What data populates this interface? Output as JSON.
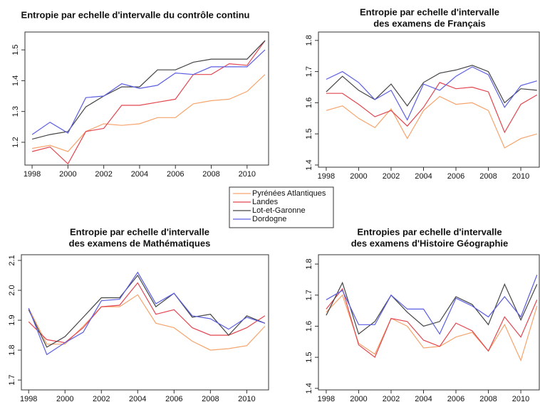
{
  "legend": {
    "series": [
      {
        "name": "Pyrénées Atlantiques",
        "color": "#f6a46c"
      },
      {
        "name": "Landes",
        "color": "#e2464f"
      },
      {
        "name": "Lot-et-Garonne",
        "color": "#444444"
      },
      {
        "name": "Dordogne",
        "color": "#5b5ee0"
      }
    ]
  },
  "chart_data": [
    {
      "type": "line",
      "title": [
        "Entropie par echelle d'intervalle du contrôle continu"
      ],
      "x": [
        1998,
        1999,
        2000,
        2001,
        2002,
        2003,
        2004,
        2005,
        2006,
        2007,
        2008,
        2009,
        2010,
        2011
      ],
      "xlim": [
        1997.6,
        2011.2
      ],
      "xticks": [
        1998,
        2000,
        2002,
        2004,
        2006,
        2008,
        2010
      ],
      "ylim": [
        1.126,
        1.558
      ],
      "yticks": [
        1.2,
        1.3,
        1.4,
        1.5
      ],
      "series": [
        {
          "values": [
            1.18,
            1.19,
            1.17,
            1.235,
            1.26,
            1.255,
            1.26,
            1.28,
            1.28,
            1.325,
            1.335,
            1.34,
            1.365,
            1.42
          ]
        },
        {
          "values": [
            1.17,
            1.185,
            1.13,
            1.235,
            1.245,
            1.32,
            1.32,
            1.33,
            1.34,
            1.42,
            1.42,
            1.455,
            1.45,
            1.53
          ]
        },
        {
          "values": [
            1.21,
            1.225,
            1.235,
            1.315,
            1.35,
            1.38,
            1.38,
            1.435,
            1.435,
            1.46,
            1.47,
            1.47,
            1.47,
            1.53
          ]
        },
        {
          "values": [
            1.225,
            1.265,
            1.23,
            1.345,
            1.35,
            1.39,
            1.375,
            1.385,
            1.425,
            1.42,
            1.445,
            1.445,
            1.445,
            1.5
          ]
        }
      ]
    },
    {
      "type": "line",
      "title": [
        "Entropie par echelle d'intervalle",
        "des examens de Français"
      ],
      "x": [
        1998,
        1999,
        2000,
        2001,
        2002,
        2003,
        2004,
        2005,
        2006,
        2007,
        2008,
        2009,
        2010,
        2011
      ],
      "xlim": [
        1997.52,
        2011.14
      ],
      "xticks": [
        1998,
        2000,
        2002,
        2004,
        2006,
        2008,
        2010
      ],
      "ylim": [
        1.393,
        1.827
      ],
      "yticks": [
        1.4,
        1.5,
        1.6,
        1.7,
        1.8
      ],
      "series": [
        {
          "values": [
            1.575,
            1.59,
            1.55,
            1.52,
            1.58,
            1.485,
            1.575,
            1.62,
            1.595,
            1.6,
            1.575,
            1.455,
            1.485,
            1.5
          ]
        },
        {
          "values": [
            1.63,
            1.63,
            1.595,
            1.555,
            1.575,
            1.525,
            1.585,
            1.665,
            1.645,
            1.65,
            1.635,
            1.505,
            1.595,
            1.625
          ]
        },
        {
          "values": [
            1.635,
            1.685,
            1.64,
            1.61,
            1.66,
            1.59,
            1.665,
            1.695,
            1.705,
            1.72,
            1.7,
            1.6,
            1.645,
            1.64
          ]
        },
        {
          "values": [
            1.675,
            1.7,
            1.665,
            1.61,
            1.64,
            1.545,
            1.66,
            1.64,
            1.685,
            1.715,
            1.69,
            1.585,
            1.655,
            1.67
          ]
        }
      ]
    },
    {
      "type": "line",
      "title": [
        "Entropie par echelle d'intervalle",
        "des examens de Mathématiques"
      ],
      "x": [
        1998,
        1999,
        2000,
        2001,
        2002,
        2003,
        2004,
        2005,
        2006,
        2007,
        2008,
        2009,
        2010,
        2011
      ],
      "xlim": [
        1997.6,
        2011.2
      ],
      "xticks": [
        1998,
        2000,
        2002,
        2004,
        2006,
        2008,
        2010
      ],
      "ylim": [
        1.667,
        2.119
      ],
      "yticks": [
        1.7,
        1.8,
        1.9,
        {
          "value": 2,
          "label": "2.0"
        },
        2.1
      ],
      "series": [
        {
          "values": [
            1.94,
            1.82,
            1.82,
            1.88,
            1.945,
            1.945,
            1.985,
            1.89,
            1.875,
            1.83,
            1.8,
            1.805,
            1.815,
            1.88
          ]
        },
        {
          "values": [
            1.895,
            1.835,
            1.825,
            1.875,
            1.945,
            1.95,
            2.025,
            1.92,
            1.935,
            1.875,
            1.85,
            1.85,
            1.875,
            1.915
          ]
        },
        {
          "values": [
            1.935,
            1.81,
            1.845,
            1.91,
            1.975,
            1.975,
            2.05,
            1.945,
            1.99,
            1.91,
            1.92,
            1.85,
            1.915,
            1.89
          ]
        },
        {
          "values": [
            1.94,
            1.785,
            1.825,
            1.86,
            1.965,
            1.97,
            2.06,
            1.955,
            1.99,
            1.915,
            1.905,
            1.87,
            1.91,
            1.89
          ]
        }
      ]
    },
    {
      "type": "line",
      "title": [
        "Entropies par echelle d'intervalle",
        "des examens d'Histoire Géographie"
      ],
      "x": [
        1998,
        1999,
        2000,
        2001,
        2002,
        2003,
        2004,
        2005,
        2006,
        2007,
        2008,
        2009,
        2010,
        2011
      ],
      "xlim": [
        1997.52,
        2011.14
      ],
      "xticks": [
        1998,
        2000,
        2002,
        2004,
        2006,
        2008,
        2010
      ],
      "ylim": [
        1.395,
        1.83
      ],
      "yticks": [
        1.4,
        1.5,
        1.6,
        1.7,
        1.8
      ],
      "series": [
        {
          "values": [
            1.645,
            1.7,
            1.545,
            1.51,
            1.625,
            1.6,
            1.53,
            1.535,
            1.565,
            1.58,
            1.52,
            1.605,
            1.49,
            1.665
          ]
        },
        {
          "values": [
            1.655,
            1.72,
            1.54,
            1.5,
            1.625,
            1.615,
            1.555,
            1.535,
            1.61,
            1.585,
            1.52,
            1.63,
            1.565,
            1.685
          ]
        },
        {
          "values": [
            1.635,
            1.74,
            1.575,
            1.615,
            1.7,
            1.645,
            1.6,
            1.615,
            1.695,
            1.67,
            1.605,
            1.735,
            1.62,
            1.735
          ]
        },
        {
          "values": [
            1.685,
            1.715,
            1.605,
            1.605,
            1.7,
            1.655,
            1.655,
            1.575,
            1.69,
            1.665,
            1.63,
            1.695,
            1.63,
            1.765
          ]
        }
      ]
    }
  ]
}
